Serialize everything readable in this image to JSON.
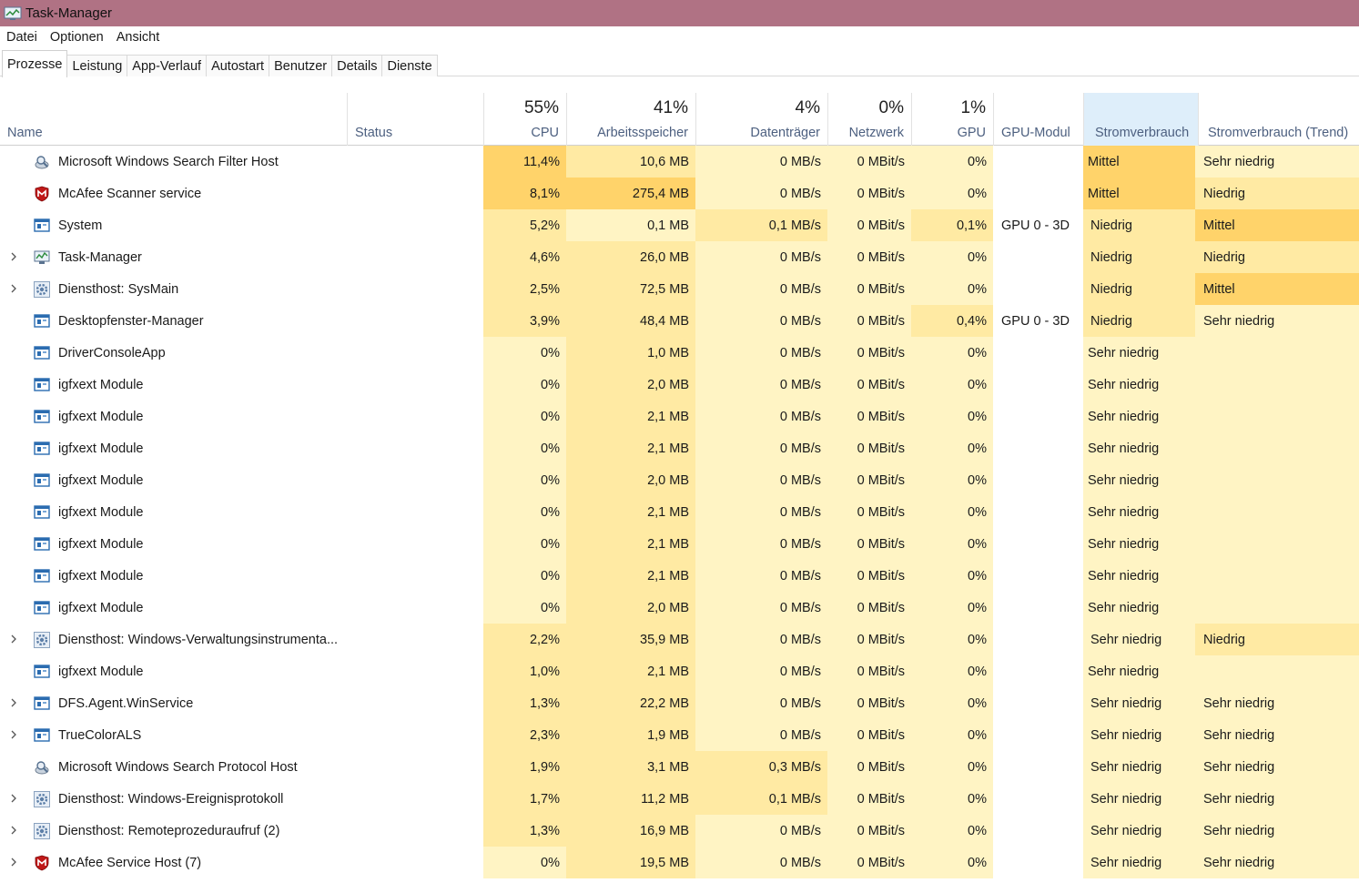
{
  "window": {
    "title": "Task-Manager"
  },
  "menu": [
    "Datei",
    "Optionen",
    "Ansicht"
  ],
  "tabs": [
    "Prozesse",
    "Leistung",
    "App-Verlauf",
    "Autostart",
    "Benutzer",
    "Details",
    "Dienste"
  ],
  "columns": {
    "name": "Name",
    "status": "Status",
    "cpu": {
      "label": "CPU",
      "total": "55%"
    },
    "memory": {
      "label": "Arbeitsspeicher",
      "total": "41%"
    },
    "disk": {
      "label": "Datenträger",
      "total": "4%"
    },
    "network": {
      "label": "Netzwerk",
      "total": "0%"
    },
    "gpu": {
      "label": "GPU",
      "total": "1%"
    },
    "gpu_engine": {
      "label": "GPU-Modul"
    },
    "power": {
      "label": "Stromverbrauch"
    },
    "power_trend": {
      "label": "Stromverbrauch (Trend)"
    }
  },
  "colors": {
    "titlebar": "#b07284",
    "heat_light": "#fff4c4",
    "heat_medium": "#ffeaa3",
    "heat_strong": "#ffd36a",
    "power_header": "#deeefa"
  },
  "processes": [
    {
      "expand": false,
      "icon": "search-host-icon",
      "name": "Microsoft Windows Search Filter Host",
      "cpu": "11,4%",
      "mem": "10,6 MB",
      "disk": "0 MB/s",
      "net": "0 MBit/s",
      "gpu": "0%",
      "engine": "",
      "power": "Mittel",
      "trend": "Sehr niedrig"
    },
    {
      "expand": false,
      "icon": "mcafee-icon",
      "name": "McAfee Scanner service",
      "cpu": "8,1%",
      "mem": "275,4 MB",
      "disk": "0 MB/s",
      "net": "0 MBit/s",
      "gpu": "0%",
      "engine": "",
      "power": "Mittel",
      "trend": "Niedrig"
    },
    {
      "expand": false,
      "icon": "window-app-icon",
      "name": "System",
      "cpu": "5,2%",
      "mem": "0,1 MB",
      "disk": "0,1 MB/s",
      "net": "0 MBit/s",
      "gpu": "0,1%",
      "engine": "GPU 0 - 3D",
      "power": "Niedrig",
      "trend": "Mittel"
    },
    {
      "expand": true,
      "icon": "task-manager-icon",
      "name": "Task-Manager",
      "cpu": "4,6%",
      "mem": "26,0 MB",
      "disk": "0 MB/s",
      "net": "0 MBit/s",
      "gpu": "0%",
      "engine": "",
      "power": "Niedrig",
      "trend": "Niedrig"
    },
    {
      "expand": true,
      "icon": "gear-icon",
      "name": "Diensthost: SysMain",
      "cpu": "2,5%",
      "mem": "72,5 MB",
      "disk": "0 MB/s",
      "net": "0 MBit/s",
      "gpu": "0%",
      "engine": "",
      "power": "Niedrig",
      "trend": "Mittel"
    },
    {
      "expand": false,
      "icon": "window-app-icon",
      "name": "Desktopfenster-Manager",
      "cpu": "3,9%",
      "mem": "48,4 MB",
      "disk": "0 MB/s",
      "net": "0 MBit/s",
      "gpu": "0,4%",
      "engine": "GPU 0 - 3D",
      "power": "Niedrig",
      "trend": "Sehr niedrig"
    },
    {
      "expand": false,
      "icon": "window-app-icon",
      "name": "DriverConsoleApp",
      "cpu": "0%",
      "mem": "1,0 MB",
      "disk": "0 MB/s",
      "net": "0 MBit/s",
      "gpu": "0%",
      "engine": "",
      "power": "Sehr niedrig",
      "trend": ""
    },
    {
      "expand": false,
      "icon": "window-app-icon",
      "name": "igfxext Module",
      "cpu": "0%",
      "mem": "2,0 MB",
      "disk": "0 MB/s",
      "net": "0 MBit/s",
      "gpu": "0%",
      "engine": "",
      "power": "Sehr niedrig",
      "trend": ""
    },
    {
      "expand": false,
      "icon": "window-app-icon",
      "name": "igfxext Module",
      "cpu": "0%",
      "mem": "2,1 MB",
      "disk": "0 MB/s",
      "net": "0 MBit/s",
      "gpu": "0%",
      "engine": "",
      "power": "Sehr niedrig",
      "trend": ""
    },
    {
      "expand": false,
      "icon": "window-app-icon",
      "name": "igfxext Module",
      "cpu": "0%",
      "mem": "2,1 MB",
      "disk": "0 MB/s",
      "net": "0 MBit/s",
      "gpu": "0%",
      "engine": "",
      "power": "Sehr niedrig",
      "trend": ""
    },
    {
      "expand": false,
      "icon": "window-app-icon",
      "name": "igfxext Module",
      "cpu": "0%",
      "mem": "2,0 MB",
      "disk": "0 MB/s",
      "net": "0 MBit/s",
      "gpu": "0%",
      "engine": "",
      "power": "Sehr niedrig",
      "trend": ""
    },
    {
      "expand": false,
      "icon": "window-app-icon",
      "name": "igfxext Module",
      "cpu": "0%",
      "mem": "2,1 MB",
      "disk": "0 MB/s",
      "net": "0 MBit/s",
      "gpu": "0%",
      "engine": "",
      "power": "Sehr niedrig",
      "trend": ""
    },
    {
      "expand": false,
      "icon": "window-app-icon",
      "name": "igfxext Module",
      "cpu": "0%",
      "mem": "2,1 MB",
      "disk": "0 MB/s",
      "net": "0 MBit/s",
      "gpu": "0%",
      "engine": "",
      "power": "Sehr niedrig",
      "trend": ""
    },
    {
      "expand": false,
      "icon": "window-app-icon",
      "name": "igfxext Module",
      "cpu": "0%",
      "mem": "2,1 MB",
      "disk": "0 MB/s",
      "net": "0 MBit/s",
      "gpu": "0%",
      "engine": "",
      "power": "Sehr niedrig",
      "trend": ""
    },
    {
      "expand": false,
      "icon": "window-app-icon",
      "name": "igfxext Module",
      "cpu": "0%",
      "mem": "2,0 MB",
      "disk": "0 MB/s",
      "net": "0 MBit/s",
      "gpu": "0%",
      "engine": "",
      "power": "Sehr niedrig",
      "trend": ""
    },
    {
      "expand": true,
      "icon": "gear-icon",
      "name": "Diensthost: Windows-Verwaltungsinstrumenta...",
      "cpu": "2,2%",
      "mem": "35,9 MB",
      "disk": "0 MB/s",
      "net": "0 MBit/s",
      "gpu": "0%",
      "engine": "",
      "power": "Sehr niedrig",
      "trend": "Niedrig"
    },
    {
      "expand": false,
      "icon": "window-app-icon",
      "name": "igfxext Module",
      "cpu": "1,0%",
      "mem": "2,1 MB",
      "disk": "0 MB/s",
      "net": "0 MBit/s",
      "gpu": "0%",
      "engine": "",
      "power": "Sehr niedrig",
      "trend": ""
    },
    {
      "expand": true,
      "icon": "window-app-icon",
      "name": "DFS.Agent.WinService",
      "cpu": "1,3%",
      "mem": "22,2 MB",
      "disk": "0 MB/s",
      "net": "0 MBit/s",
      "gpu": "0%",
      "engine": "",
      "power": "Sehr niedrig",
      "trend": "Sehr niedrig"
    },
    {
      "expand": true,
      "icon": "window-app-icon",
      "name": "TrueColorALS",
      "cpu": "2,3%",
      "mem": "1,9 MB",
      "disk": "0 MB/s",
      "net": "0 MBit/s",
      "gpu": "0%",
      "engine": "",
      "power": "Sehr niedrig",
      "trend": "Sehr niedrig"
    },
    {
      "expand": false,
      "icon": "search-host-icon",
      "name": "Microsoft Windows Search Protocol Host",
      "cpu": "1,9%",
      "mem": "3,1 MB",
      "disk": "0,3 MB/s",
      "net": "0 MBit/s",
      "gpu": "0%",
      "engine": "",
      "power": "Sehr niedrig",
      "trend": "Sehr niedrig"
    },
    {
      "expand": true,
      "icon": "gear-icon",
      "name": "Diensthost: Windows-Ereignisprotokoll",
      "cpu": "1,7%",
      "mem": "11,2 MB",
      "disk": "0,1 MB/s",
      "net": "0 MBit/s",
      "gpu": "0%",
      "engine": "",
      "power": "Sehr niedrig",
      "trend": "Sehr niedrig"
    },
    {
      "expand": true,
      "icon": "gear-icon",
      "name": "Diensthost: Remoteprozeduraufruf (2)",
      "cpu": "1,3%",
      "mem": "16,9 MB",
      "disk": "0 MB/s",
      "net": "0 MBit/s",
      "gpu": "0%",
      "engine": "",
      "power": "Sehr niedrig",
      "trend": "Sehr niedrig"
    },
    {
      "expand": true,
      "icon": "mcafee-icon",
      "name": "McAfee Service Host (7)",
      "cpu": "0%",
      "mem": "19,5 MB",
      "disk": "0 MB/s",
      "net": "0 MBit/s",
      "gpu": "0%",
      "engine": "",
      "power": "Sehr niedrig",
      "trend": "Sehr niedrig"
    }
  ]
}
